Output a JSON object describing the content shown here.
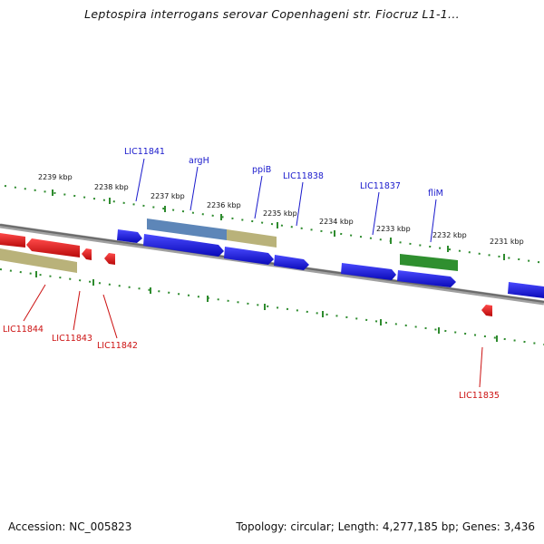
{
  "title": "Leptospira interrogans serovar Copenhageni str. Fiocruz L1-1...",
  "footer": {
    "accession": "Accession: NC_005823",
    "summary": "Topology: circular; Length: 4,277,185 bp; Genes: 3,436"
  },
  "scale_labels": [
    "2239 kbp",
    "2238 kbp",
    "2237 kbp",
    "2236 kbp",
    "2235 kbp",
    "2234 kbp",
    "2233 kbp",
    "2232 kbp",
    "2231 kbp"
  ],
  "gene_labels_forward": [
    "LIC11841",
    "argH",
    "ppiB",
    "LIC11838",
    "LIC11837",
    "fliM"
  ],
  "gene_labels_reverse": [
    "LIC11844",
    "LIC11843",
    "LIC11842",
    "LIC11835"
  ],
  "colors": {
    "forward_gene": "#1f1fe0",
    "reverse_gene": "#e01f1f",
    "highlight_blue": "#5d86b8",
    "highlight_khaki": "#b9b27a",
    "highlight_green": "#2f8f2f",
    "backbone": "#808080",
    "scale_ticks": "#2e8b2e",
    "label_forward": "#1a1acc",
    "label_reverse": "#cc1111"
  }
}
